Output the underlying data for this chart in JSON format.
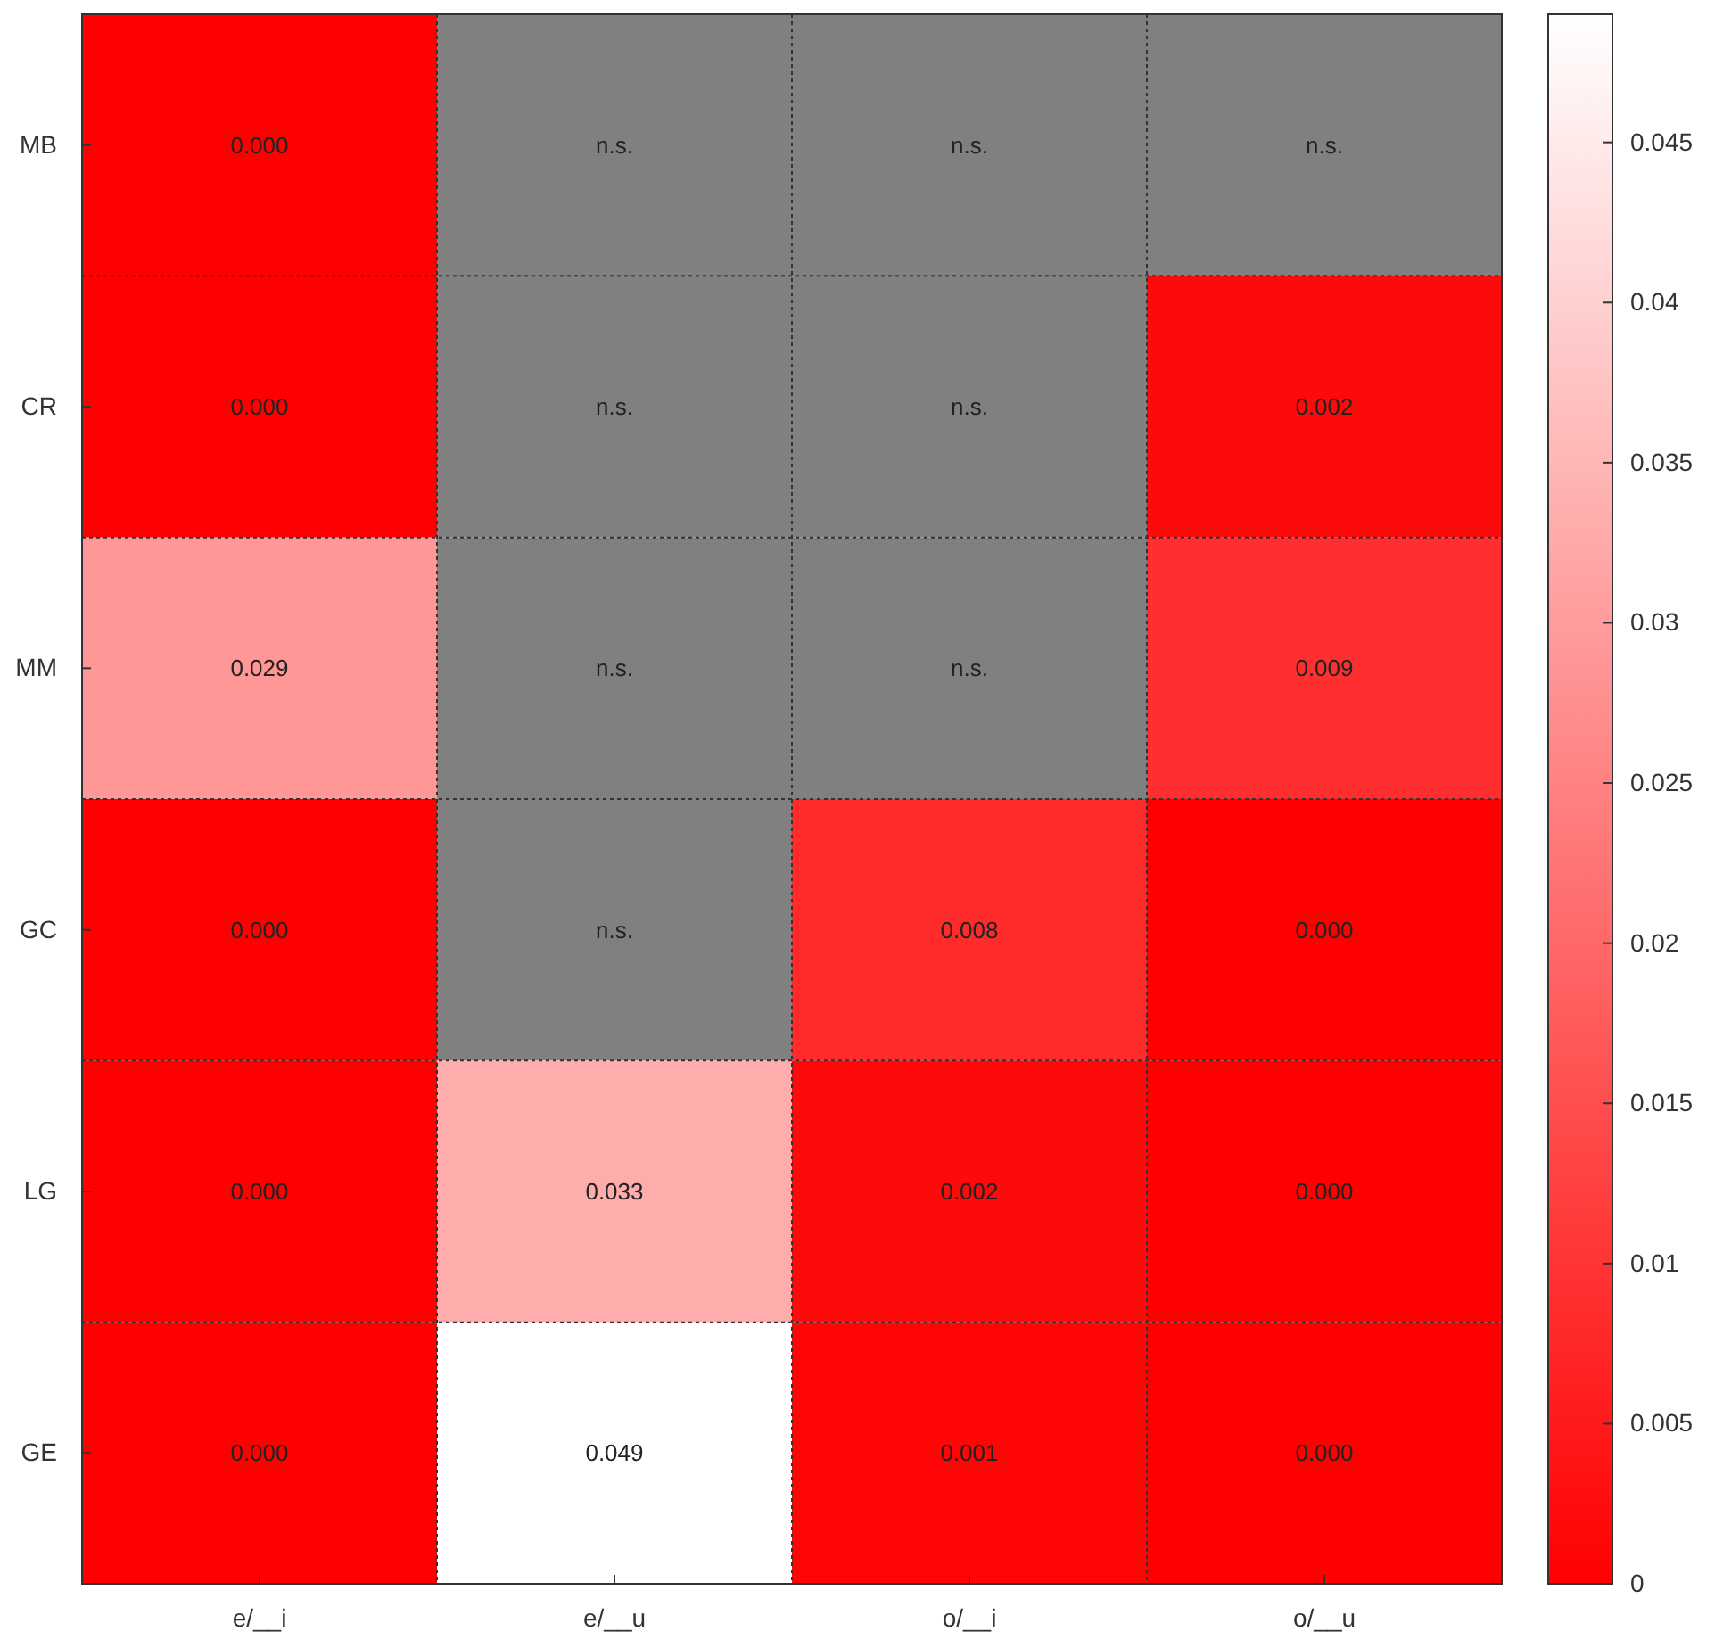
{
  "chart_data": {
    "type": "heatmap",
    "categories": [
      "e/__i",
      "e/__u",
      "o/__i",
      "o/__u"
    ],
    "y_categories": [
      "MB",
      "CR",
      "MM",
      "GC",
      "LG",
      "GE"
    ],
    "cells": [
      [
        0.0,
        null,
        null,
        null
      ],
      [
        0.0,
        null,
        null,
        0.002
      ],
      [
        0.029,
        null,
        null,
        0.009
      ],
      [
        0.0,
        null,
        0.008,
        0.0
      ],
      [
        0.0,
        0.033,
        0.002,
        0.0
      ],
      [
        0.0,
        0.049,
        0.001,
        0.0
      ]
    ],
    "cell_labels": [
      [
        "0.000",
        "n.s.",
        "n.s.",
        "n.s."
      ],
      [
        "0.000",
        "n.s.",
        "n.s.",
        "0.002"
      ],
      [
        "0.029",
        "n.s.",
        "n.s.",
        "0.009"
      ],
      [
        "0.000",
        "n.s.",
        "0.008",
        "0.000"
      ],
      [
        "0.000",
        "0.033",
        "0.002",
        "0.000"
      ],
      [
        "0.000",
        "0.049",
        "0.001",
        "0.000"
      ]
    ],
    "clim": [
      0,
      0.049
    ],
    "cticks": [
      0,
      0.005,
      0.01,
      0.015,
      0.02,
      0.025,
      0.03,
      0.035,
      0.04,
      0.045
    ],
    "grid": true
  }
}
